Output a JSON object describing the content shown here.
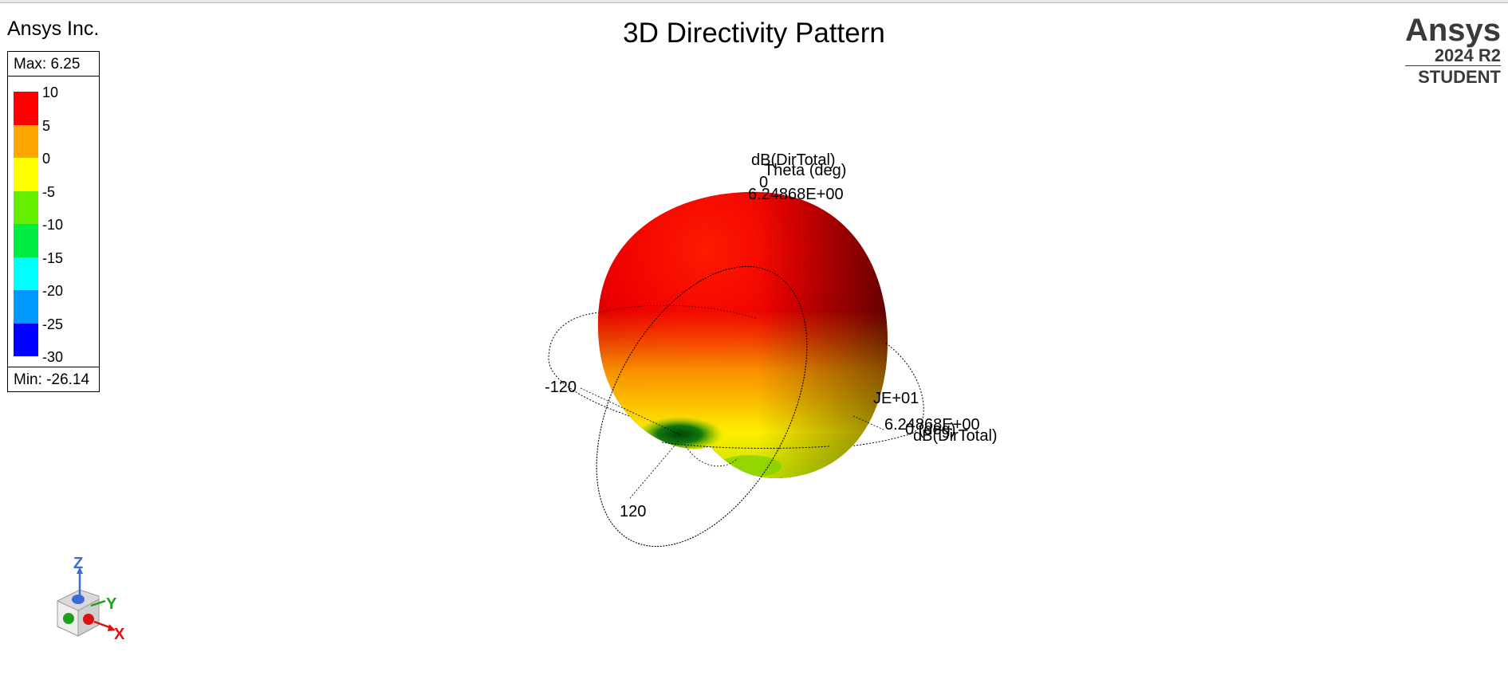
{
  "header": {
    "company": "Ansys Inc.",
    "title": "3D Directivity Pattern"
  },
  "brand": {
    "name": "Ansys",
    "version": "2024 R2",
    "edition": "STUDENT"
  },
  "legend": {
    "max_label": "Max: 6.25",
    "min_label": "Min: -26.14",
    "ticks": [
      "10",
      "5",
      "0",
      "-5",
      "-10",
      "-15",
      "-20",
      "-25",
      "-30"
    ],
    "colors": [
      "#ff0000",
      "#ffa500",
      "#ffff00",
      "#66ee00",
      "#00ee44",
      "#00ffff",
      "#0099ff",
      "#0000ff"
    ]
  },
  "chart_data": {
    "type": "3d-surface",
    "title": "3D Directivity Pattern",
    "quantity": "dB(DirTotal)",
    "max": 6.25,
    "min": -26.14,
    "color_scale": [
      -30,
      -25,
      -20,
      -15,
      -10,
      -5,
      0,
      5,
      10
    ],
    "annotations": {
      "top_quantity": "dB(DirTotal)",
      "theta_label": "Theta (deg)",
      "theta_zero": "0",
      "top_value": "6.24868E+00",
      "ring_left": "-120",
      "ring_bottom": "120",
      "ring_right_value": "JE+01",
      "right_value": "6.24868E+00",
      "right_phi": "0 (deg)",
      "right_quantity": "dB(DirTotal)"
    }
  },
  "axis_triad": {
    "z": "Z",
    "y": "Y",
    "x": "X"
  }
}
